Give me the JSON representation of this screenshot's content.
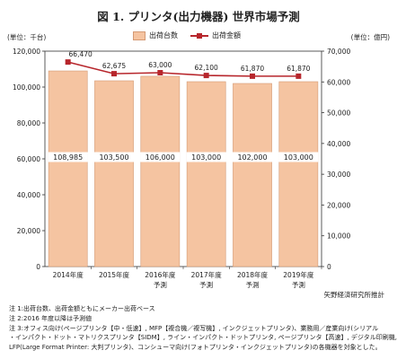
{
  "chart_data": {
    "type": "bar",
    "title": "図 1. プリンタ(出力機器) 世界市場予測",
    "unit_left": "(単位：千台)",
    "unit_right": "(単位：億円)",
    "categories": [
      [
        "2014年度"
      ],
      [
        "2015年度"
      ],
      [
        "2016年度",
        "予測"
      ],
      [
        "2017年度",
        "予測"
      ],
      [
        "2018年度",
        "予測"
      ],
      [
        "2019年度",
        "予測"
      ]
    ],
    "series": [
      {
        "name": "出荷台数",
        "kind": "bar",
        "axis": "left",
        "values": [
          108985,
          103500,
          106000,
          103000,
          102000,
          103000
        ],
        "labels": [
          "108,985",
          "103,500",
          "106,000",
          "103,000",
          "102,000",
          "103,000"
        ]
      },
      {
        "name": "出荷金額",
        "kind": "line",
        "axis": "right",
        "values": [
          66470,
          62675,
          63000,
          62100,
          61870,
          61870
        ],
        "labels": [
          "66,470",
          "62,675",
          "63,000",
          "62,100",
          "61,870",
          "61,870"
        ]
      }
    ],
    "y_left": {
      "min": 0,
      "max": 120000,
      "ticks": [
        "0",
        "20,000",
        "40,000",
        "60,000",
        "80,000",
        "100,000",
        "120,000"
      ]
    },
    "y_right": {
      "min": 0,
      "max": 70000,
      "ticks": [
        "0",
        "10,000",
        "20,000",
        "30,000",
        "40,000",
        "50,000",
        "60,000",
        "70,000"
      ]
    },
    "colors": {
      "bar": "#f5c4a1",
      "bar_border": "#d49a74",
      "line": "#b7262c"
    },
    "grid": false,
    "legend_position": "top-center"
  },
  "source": "矢野経済研究所推計",
  "notes": [
    "注 1:出荷台数、出荷金額ともにメーカー出荷ベース",
    "注 2:2016 年度以降は予測値",
    "注 3:オフィス向け(ページプリンタ【中・低速】, MFP【複合機／複写機】, インクジェットプリンタ)、業務用／産業向け(シリアル",
    "・インパクト・ドット・マトリクスプリンタ【SIDM】, ライン・インパクト・ドットプリンタ, ページプリンタ【高速】, デジタル印刷機,",
    "LFP(Large Format Printer: 大判プリンタ)、コンシューマ向け(フォトプリンタ・インクジェットプリンタ)の各機器を対象とした。"
  ]
}
